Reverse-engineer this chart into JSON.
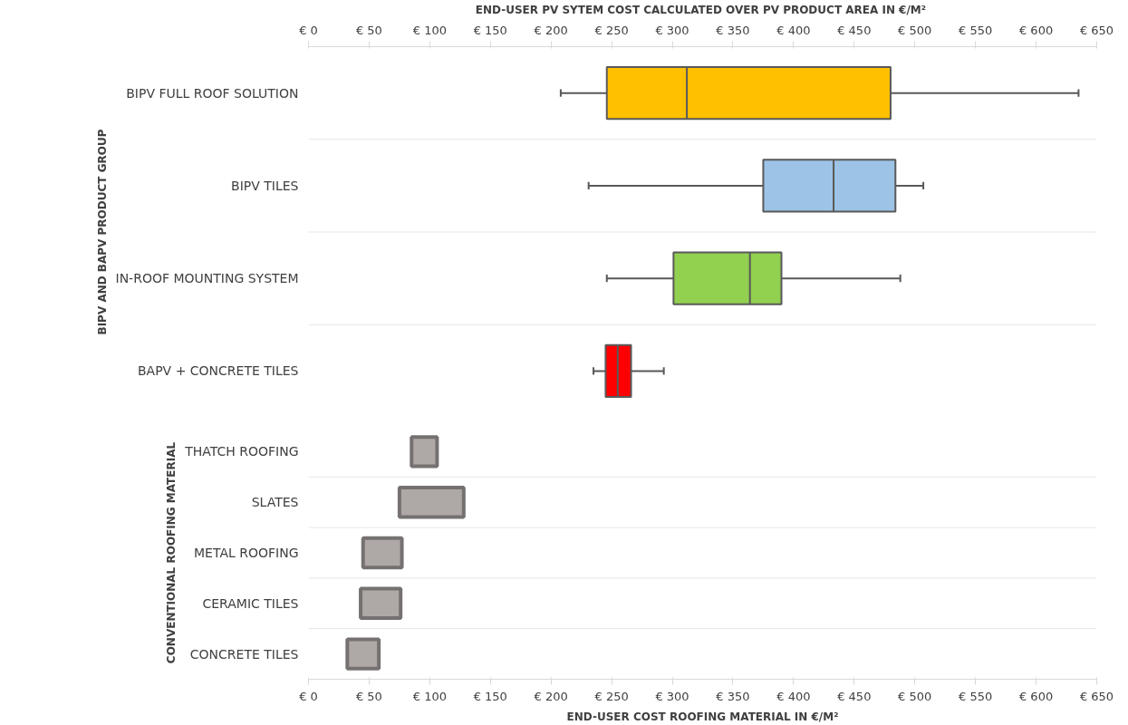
{
  "chart_data": [
    {
      "type": "box",
      "orientation": "horizontal",
      "xlabel": "END-USER PV SYTEM COST CALCULATED OVER PV  PRODUCT AREA IN €/M²",
      "ylabel": "BIPV AND BAPV PRODUCT GROUP",
      "categories": [
        "BIPV FULL ROOF SOLUTION",
        "BIPV TILES",
        "IN-ROOF MOUNTING SYSTEM",
        "BAPV + CONCRETE TILES"
      ],
      "colors": [
        "#ffc000",
        "#9dc3e6",
        "#92d050",
        "#ff0000"
      ],
      "boxes": [
        {
          "low": 208,
          "q1": 246,
          "median": 312,
          "q3": 480,
          "high": 635
        },
        {
          "low": 231,
          "q1": 375,
          "median": 433,
          "q3": 484,
          "high": 507
        },
        {
          "low": 246,
          "q1": 301,
          "median": 364,
          "q3": 390,
          "high": 488
        },
        {
          "low": 235,
          "q1": 245,
          "median": 255,
          "q3": 266,
          "high": 293
        }
      ],
      "xlim": [
        0,
        650
      ],
      "xticks": [
        {
          "value": 0,
          "label": "€ 0"
        },
        {
          "value": 50,
          "label": "€ 50"
        },
        {
          "value": 100,
          "label": "€ 100"
        },
        {
          "value": 150,
          "label": "€ 150"
        },
        {
          "value": 200,
          "label": "€ 200"
        },
        {
          "value": 250,
          "label": "€ 250"
        },
        {
          "value": 300,
          "label": "€ 300"
        },
        {
          "value": 350,
          "label": "€ 350"
        },
        {
          "value": 400,
          "label": "€ 400"
        },
        {
          "value": 450,
          "label": "€ 450"
        },
        {
          "value": 500,
          "label": "€ 500"
        },
        {
          "value": 550,
          "label": "€ 550"
        },
        {
          "value": 600,
          "label": "€ 600"
        },
        {
          "value": 650,
          "label": "€ 650"
        }
      ]
    },
    {
      "type": "bar",
      "orientation": "horizontal",
      "xlabel": "END-USER COST ROOFING MATERIAL IN €/M²",
      "ylabel": "CONVENTIONAL ROOFING MATERIAL",
      "categories": [
        "THATCH ROOFING",
        "SLATES",
        "METAL ROOFING",
        "CERAMIC TILES",
        "CONCRETE TILES"
      ],
      "color": "#aea9a6",
      "base": [
        85,
        75,
        45,
        43,
        32
      ],
      "values": [
        21,
        53,
        32,
        33,
        26
      ],
      "xlim": [
        0,
        650
      ],
      "xticks": [
        {
          "value": 0,
          "label": "€ 0"
        },
        {
          "value": 50,
          "label": "€ 50"
        },
        {
          "value": 100,
          "label": "€ 100"
        },
        {
          "value": 150,
          "label": "€ 150"
        },
        {
          "value": 200,
          "label": "€ 200"
        },
        {
          "value": 250,
          "label": "€ 250"
        },
        {
          "value": 300,
          "label": "€ 300"
        },
        {
          "value": 350,
          "label": "€ 350"
        },
        {
          "value": 400,
          "label": "€ 400"
        },
        {
          "value": 450,
          "label": "€ 450"
        },
        {
          "value": 500,
          "label": "€ 500"
        },
        {
          "value": 550,
          "label": "€ 550"
        },
        {
          "value": 600,
          "label": "€ 600"
        },
        {
          "value": 650,
          "label": "€ 650"
        }
      ]
    }
  ]
}
